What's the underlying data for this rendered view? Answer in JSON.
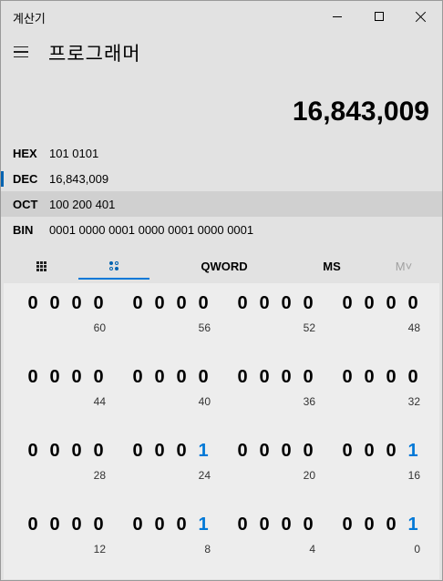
{
  "window": {
    "title": "계산기"
  },
  "header": {
    "mode_title": "프로그래머"
  },
  "display": {
    "value": "16,843,009"
  },
  "radix": [
    {
      "label": "HEX",
      "value": "101 0101",
      "selected": false
    },
    {
      "label": "DEC",
      "value": "16,843,009",
      "selected": true
    },
    {
      "label": "OCT",
      "value": "100 200 401",
      "selected": false
    },
    {
      "label": "BIN",
      "value": "0001 0000 0001 0000 0001 0000 0001",
      "selected": false
    }
  ],
  "tabs": {
    "keypad_icon": "keypad-grid-icon",
    "bit_toggle_icon": "bit-toggle-icon",
    "word_size": "QWORD",
    "memory_store": "MS",
    "memory_list": "M˅"
  },
  "colors": {
    "accent": "#0078d7",
    "bit_on": "#0078d7",
    "indicator": "#0063b1"
  },
  "bits": {
    "rows": [
      {
        "groups": [
          [
            "0",
            "0",
            "0",
            "0"
          ],
          [
            "0",
            "0",
            "0",
            "0"
          ],
          [
            "0",
            "0",
            "0",
            "0"
          ],
          [
            "0",
            "0",
            "0",
            "0"
          ]
        ],
        "positions": [
          "60",
          "56",
          "52",
          "48"
        ]
      },
      {
        "groups": [
          [
            "0",
            "0",
            "0",
            "0"
          ],
          [
            "0",
            "0",
            "0",
            "0"
          ],
          [
            "0",
            "0",
            "0",
            "0"
          ],
          [
            "0",
            "0",
            "0",
            "0"
          ]
        ],
        "positions": [
          "44",
          "40",
          "36",
          "32"
        ]
      },
      {
        "groups": [
          [
            "0",
            "0",
            "0",
            "0"
          ],
          [
            "0",
            "0",
            "0",
            "1"
          ],
          [
            "0",
            "0",
            "0",
            "0"
          ],
          [
            "0",
            "0",
            "0",
            "1"
          ]
        ],
        "positions": [
          "28",
          "24",
          "20",
          "16"
        ]
      },
      {
        "groups": [
          [
            "0",
            "0",
            "0",
            "0"
          ],
          [
            "0",
            "0",
            "0",
            "1"
          ],
          [
            "0",
            "0",
            "0",
            "0"
          ],
          [
            "0",
            "0",
            "0",
            "1"
          ]
        ],
        "positions": [
          "12",
          "8",
          "4",
          "0"
        ]
      }
    ]
  }
}
